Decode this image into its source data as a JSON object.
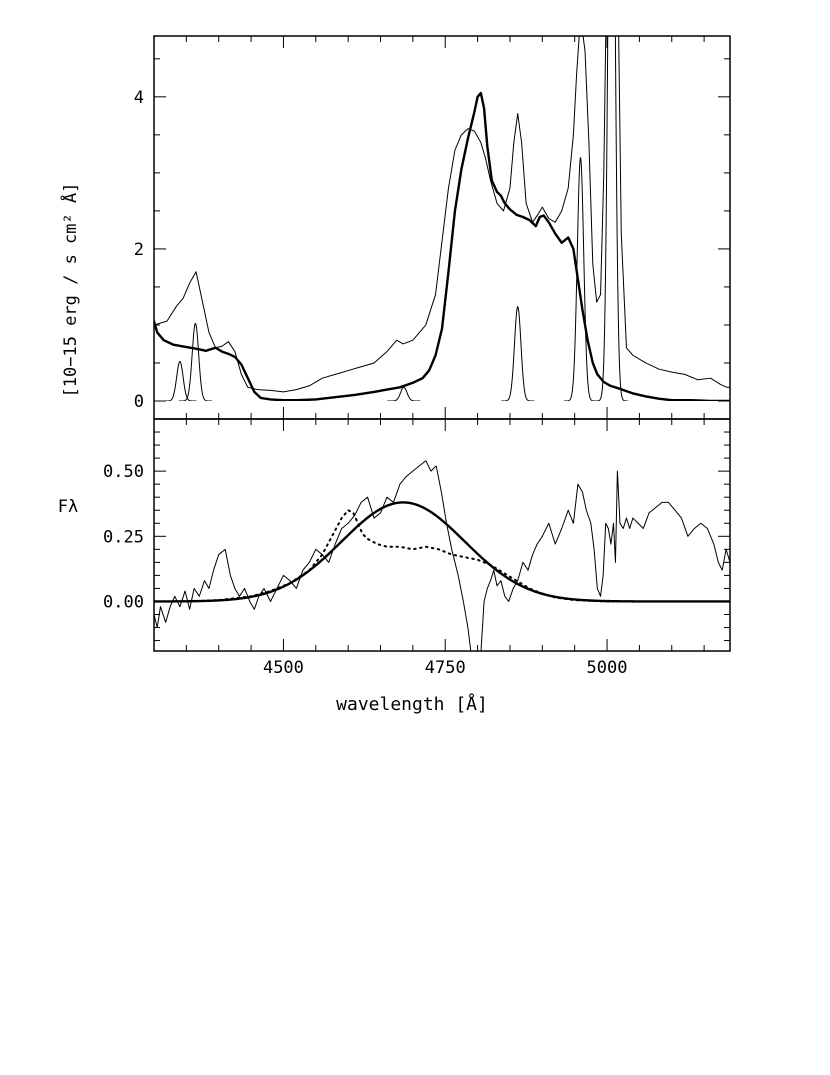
{
  "chart_data": [
    {
      "type": "line",
      "panel": "top",
      "xlabel": "",
      "ylabel": "[10−15 erg / s cm² Å]",
      "xlim": [
        4300,
        5190
      ],
      "ylim": [
        0,
        4.8
      ],
      "xticks": [
        4500,
        4750,
        5000
      ],
      "yticks": [
        0,
        2,
        4
      ],
      "ytick_labels": [
        "0",
        "2",
        "4"
      ],
      "grid": false,
      "series": [
        {
          "style": "thin",
          "x": [
            4300,
            4320,
            4335,
            4345,
            4355,
            4365,
            4375,
            4385,
            4395,
            4405,
            4415,
            4425,
            4435,
            4445,
            4460,
            4480,
            4500,
            4520,
            4540,
            4560,
            4580,
            4600,
            4620,
            4640,
            4660,
            4675,
            4685,
            4700,
            4720,
            4735,
            4745,
            4755,
            4765,
            4775,
            4785,
            4795,
            4805,
            4812,
            4820,
            4830,
            4840,
            4850,
            4856,
            4862,
            4868,
            4875,
            4885,
            4893,
            4900,
            4910,
            4920,
            4930,
            4940,
            4948,
            4953,
            4957,
            4960,
            4963,
            4966,
            4972,
            4978,
            4984,
            4990,
            4995,
            4998,
            5002,
            5006,
            5010,
            5014,
            5018,
            5022,
            5030,
            5040,
            5060,
            5080,
            5100,
            5120,
            5140,
            5160,
            5175,
            5185,
            5190
          ],
          "y": [
            1.0,
            1.05,
            1.25,
            1.35,
            1.55,
            1.7,
            1.3,
            0.9,
            0.7,
            0.72,
            0.78,
            0.65,
            0.35,
            0.18,
            0.15,
            0.14,
            0.12,
            0.15,
            0.2,
            0.3,
            0.35,
            0.4,
            0.45,
            0.5,
            0.65,
            0.8,
            0.75,
            0.8,
            1.0,
            1.4,
            2.1,
            2.8,
            3.3,
            3.5,
            3.58,
            3.55,
            3.4,
            3.2,
            2.9,
            2.6,
            2.5,
            2.8,
            3.4,
            3.78,
            3.4,
            2.6,
            2.35,
            2.45,
            2.55,
            2.4,
            2.35,
            2.5,
            2.8,
            3.5,
            4.3,
            4.8,
            4.8,
            4.8,
            4.6,
            3.4,
            1.8,
            1.3,
            1.4,
            3.0,
            4.8,
            4.8,
            4.8,
            4.8,
            4.8,
            4.8,
            2.2,
            0.7,
            0.6,
            0.5,
            0.42,
            0.38,
            0.35,
            0.28,
            0.3,
            0.22,
            0.18,
            0.18
          ]
        },
        {
          "style": "thick",
          "x": [
            4300,
            4305,
            4315,
            4330,
            4350,
            4370,
            4380,
            4395,
            4405,
            4415,
            4425,
            4435,
            4445,
            4455,
            4465,
            4480,
            4500,
            4520,
            4550,
            4580,
            4610,
            4640,
            4660,
            4680,
            4700,
            4715,
            4725,
            4735,
            4745,
            4755,
            4765,
            4775,
            4785,
            4795,
            4800,
            4805,
            4810,
            4815,
            4822,
            4830,
            4836,
            4842,
            4850,
            4860,
            4870,
            4880,
            4890,
            4896,
            4902,
            4910,
            4920,
            4930,
            4940,
            4948,
            4955,
            4962,
            4970,
            4978,
            4985,
            4995,
            5005,
            5020,
            5040,
            5060,
            5080,
            5100,
            5130,
            5160,
            5190
          ],
          "y": [
            1.05,
            0.9,
            0.8,
            0.74,
            0.71,
            0.68,
            0.66,
            0.7,
            0.65,
            0.62,
            0.58,
            0.48,
            0.3,
            0.12,
            0.04,
            0.02,
            0.01,
            0.01,
            0.02,
            0.05,
            0.08,
            0.12,
            0.15,
            0.18,
            0.24,
            0.3,
            0.4,
            0.6,
            0.95,
            1.7,
            2.5,
            3.05,
            3.45,
            3.8,
            4.0,
            4.05,
            3.85,
            3.35,
            2.9,
            2.75,
            2.7,
            2.6,
            2.52,
            2.45,
            2.42,
            2.38,
            2.3,
            2.42,
            2.44,
            2.35,
            2.2,
            2.08,
            2.15,
            2.0,
            1.6,
            1.2,
            0.8,
            0.5,
            0.35,
            0.25,
            0.2,
            0.16,
            0.1,
            0.06,
            0.03,
            0.01,
            0.01,
            0.0,
            0.0
          ]
        },
        {
          "style": "thin",
          "type": "gaussian_lines",
          "peaks": [
            {
              "x0": 4340,
              "amp": 0.52,
              "sigma": 5
            },
            {
              "x0": 4364,
              "amp": 1.02,
              "sigma": 5
            },
            {
              "x0": 4686,
              "amp": 0.18,
              "sigma": 5
            },
            {
              "x0": 4862,
              "amp": 1.24,
              "sigma": 5
            },
            {
              "x0": 4959,
              "amp": 3.2,
              "sigma": 5
            },
            {
              "x0": 5007,
              "amp": 9.6,
              "sigma": 5
            }
          ]
        }
      ]
    },
    {
      "type": "line",
      "panel": "bottom",
      "xlabel": "wavelength [Å]",
      "ylabel": "Fλ",
      "xlim": [
        4300,
        5190
      ],
      "ylim": [
        -0.19,
        0.7
      ],
      "xticks": [
        4500,
        4750,
        5000
      ],
      "xtick_labels": [
        "4500",
        "4750",
        "5000"
      ],
      "yticks": [
        0.0,
        0.25,
        0.5
      ],
      "ytick_labels": [
        "0.00",
        "0.25",
        "0.50"
      ],
      "grid": false,
      "series": [
        {
          "style": "thin",
          "x": [
            4300,
            4305,
            4310,
            4318,
            4325,
            4332,
            4340,
            4348,
            4355,
            4362,
            4370,
            4378,
            4385,
            4392,
            4400,
            4410,
            4418,
            4425,
            4432,
            4440,
            4448,
            4455,
            4462,
            4470,
            4480,
            4490,
            4500,
            4510,
            4520,
            4530,
            4540,
            4550,
            4560,
            4570,
            4580,
            4590,
            4600,
            4610,
            4620,
            4630,
            4640,
            4650,
            4660,
            4670,
            4680,
            4690,
            4700,
            4710,
            4720,
            4728,
            4736,
            4744,
            4752,
            4760,
            4770,
            4778,
            4785,
            4790,
            4795,
            4800,
            4805,
            4810,
            4815,
            4820,
            4825,
            4830,
            4836,
            4842,
            4848,
            4855,
            4862,
            4870,
            4878,
            4885,
            4892,
            4900,
            4910,
            4920,
            4930,
            4940,
            4948,
            4955,
            4962,
            4968,
            4975,
            4980,
            4985,
            4990,
            4994,
            4998,
            5002,
            5006,
            5010,
            5013,
            5016,
            5020,
            5025,
            5030,
            5035,
            5040,
            5048,
            5056,
            5065,
            5075,
            5085,
            5095,
            5105,
            5115,
            5125,
            5135,
            5145,
            5155,
            5165,
            5172,
            5178,
            5184,
            5190
          ],
          "y": [
            -0.05,
            -0.1,
            -0.02,
            -0.08,
            -0.02,
            0.02,
            -0.02,
            0.04,
            -0.03,
            0.05,
            0.02,
            0.08,
            0.05,
            0.12,
            0.18,
            0.2,
            0.1,
            0.05,
            0.02,
            0.05,
            0.0,
            -0.03,
            0.02,
            0.05,
            0.0,
            0.05,
            0.1,
            0.08,
            0.05,
            0.12,
            0.15,
            0.2,
            0.18,
            0.15,
            0.22,
            0.28,
            0.3,
            0.33,
            0.38,
            0.4,
            0.32,
            0.34,
            0.4,
            0.38,
            0.45,
            0.48,
            0.5,
            0.52,
            0.54,
            0.5,
            0.52,
            0.42,
            0.3,
            0.2,
            0.1,
            0.0,
            -0.1,
            -0.2,
            -0.4,
            -0.6,
            -0.2,
            0.0,
            0.05,
            0.08,
            0.12,
            0.06,
            0.08,
            0.02,
            0.0,
            0.05,
            0.08,
            0.15,
            0.12,
            0.18,
            0.22,
            0.25,
            0.3,
            0.22,
            0.28,
            0.35,
            0.3,
            0.45,
            0.42,
            0.35,
            0.3,
            0.2,
            0.05,
            0.02,
            0.1,
            0.3,
            0.28,
            0.22,
            0.3,
            0.15,
            0.5,
            0.3,
            0.28,
            0.32,
            0.28,
            0.32,
            0.3,
            0.28,
            0.34,
            0.36,
            0.38,
            0.38,
            0.35,
            0.32,
            0.25,
            0.28,
            0.3,
            0.28,
            0.22,
            0.15,
            0.12,
            0.2,
            0.15
          ]
        },
        {
          "style": "thick",
          "type": "gaussian",
          "x0": 4685,
          "amp": 0.38,
          "sigma": 95
        },
        {
          "style": "dotted",
          "x": [
            4300,
            4350,
            4400,
            4450,
            4480,
            4510,
            4540,
            4560,
            4575,
            4590,
            4600,
            4608,
            4615,
            4622,
            4630,
            4645,
            4660,
            4680,
            4700,
            4720,
            4740,
            4760,
            4780,
            4800,
            4820,
            4840,
            4860,
            4880,
            4900,
            4920,
            4950,
            5000,
            5050,
            5100,
            5190
          ],
          "y": [
            0.0,
            0.0,
            0.005,
            0.02,
            0.04,
            0.07,
            0.12,
            0.18,
            0.25,
            0.32,
            0.35,
            0.34,
            0.3,
            0.26,
            0.24,
            0.22,
            0.21,
            0.21,
            0.2,
            0.21,
            0.2,
            0.18,
            0.17,
            0.16,
            0.14,
            0.11,
            0.08,
            0.05,
            0.03,
            0.015,
            0.005,
            0.0,
            0.0,
            0.0,
            0.0
          ]
        }
      ]
    }
  ]
}
